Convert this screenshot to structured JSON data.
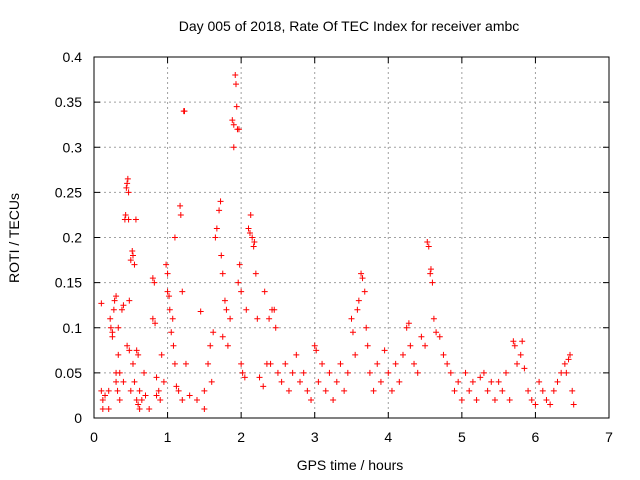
{
  "chart_data": {
    "type": "scatter",
    "title": "Day 005 of 2018, Rate Of TEC Index for receiver ambc",
    "xlabel": "GPS time / hours",
    "ylabel": "ROTI / TECUs",
    "xlim": [
      0,
      7
    ],
    "ylim": [
      0,
      0.4
    ],
    "xticks": [
      0,
      1,
      2,
      3,
      4,
      5,
      6,
      7
    ],
    "xtick_labels": [
      "0",
      "1",
      "2",
      "3",
      "4",
      "5",
      "6",
      "7"
    ],
    "yticks": [
      0,
      0.05,
      0.1,
      0.15,
      0.2,
      0.25,
      0.3,
      0.35,
      0.4
    ],
    "ytick_labels": [
      "0",
      "0.05",
      "0.1",
      "0.15",
      "0.2",
      "0.25",
      "0.3",
      "0.35",
      "0.4"
    ],
    "grid": true,
    "marker": "plus",
    "color": "#ff0000",
    "series": [
      {
        "name": "ROTI",
        "points": [
          [
            0.1,
            0.127
          ],
          [
            0.1,
            0.03
          ],
          [
            0.12,
            0.02
          ],
          [
            0.12,
            0.01
          ],
          [
            0.15,
            0.025
          ],
          [
            0.2,
            0.01
          ],
          [
            0.2,
            0.03
          ],
          [
            0.22,
            0.11
          ],
          [
            0.23,
            0.1
          ],
          [
            0.25,
            0.095
          ],
          [
            0.25,
            0.09
          ],
          [
            0.27,
            0.12
          ],
          [
            0.28,
            0.13
          ],
          [
            0.3,
            0.135
          ],
          [
            0.3,
            0.05
          ],
          [
            0.3,
            0.04
          ],
          [
            0.32,
            0.03
          ],
          [
            0.33,
            0.1
          ],
          [
            0.33,
            0.07
          ],
          [
            0.35,
            0.05
          ],
          [
            0.35,
            0.02
          ],
          [
            0.38,
            0.12
          ],
          [
            0.4,
            0.125
          ],
          [
            0.4,
            0.04
          ],
          [
            0.42,
            0.22
          ],
          [
            0.43,
            0.225
          ],
          [
            0.44,
            0.255
          ],
          [
            0.45,
            0.26
          ],
          [
            0.45,
            0.08
          ],
          [
            0.46,
            0.265
          ],
          [
            0.47,
            0.25
          ],
          [
            0.47,
            0.22
          ],
          [
            0.48,
            0.13
          ],
          [
            0.48,
            0.075
          ],
          [
            0.5,
            0.175
          ],
          [
            0.5,
            0.03
          ],
          [
            0.52,
            0.185
          ],
          [
            0.53,
            0.18
          ],
          [
            0.53,
            0.06
          ],
          [
            0.55,
            0.17
          ],
          [
            0.55,
            0.04
          ],
          [
            0.57,
            0.22
          ],
          [
            0.58,
            0.075
          ],
          [
            0.58,
            0.02
          ],
          [
            0.6,
            0.07
          ],
          [
            0.6,
            0.015
          ],
          [
            0.62,
            0.03
          ],
          [
            0.62,
            0.01
          ],
          [
            0.65,
            0.02
          ],
          [
            0.68,
            0.05
          ],
          [
            0.7,
            0.025
          ],
          [
            0.75,
            0.01
          ],
          [
            0.8,
            0.155
          ],
          [
            0.8,
            0.11
          ],
          [
            0.82,
            0.15
          ],
          [
            0.83,
            0.105
          ],
          [
            0.85,
            0.045
          ],
          [
            0.85,
            0.025
          ],
          [
            0.88,
            0.03
          ],
          [
            0.9,
            0.02
          ],
          [
            0.92,
            0.07
          ],
          [
            0.95,
            0.04
          ],
          [
            0.98,
            0.17
          ],
          [
            1.0,
            0.16
          ],
          [
            1.0,
            0.14
          ],
          [
            1.02,
            0.135
          ],
          [
            1.03,
            0.12
          ],
          [
            1.05,
            0.095
          ],
          [
            1.07,
            0.11
          ],
          [
            1.08,
            0.08
          ],
          [
            1.1,
            0.2
          ],
          [
            1.1,
            0.06
          ],
          [
            1.12,
            0.035
          ],
          [
            1.15,
            0.03
          ],
          [
            1.17,
            0.235
          ],
          [
            1.18,
            0.225
          ],
          [
            1.2,
            0.14
          ],
          [
            1.2,
            0.02
          ],
          [
            1.22,
            0.34
          ],
          [
            1.23,
            0.34
          ],
          [
            1.25,
            0.06
          ],
          [
            1.3,
            0.025
          ],
          [
            1.4,
            0.02
          ],
          [
            1.45,
            0.118
          ],
          [
            1.5,
            0.03
          ],
          [
            1.5,
            0.01
          ],
          [
            1.55,
            0.06
          ],
          [
            1.58,
            0.08
          ],
          [
            1.6,
            0.04
          ],
          [
            1.62,
            0.095
          ],
          [
            1.65,
            0.2
          ],
          [
            1.67,
            0.21
          ],
          [
            1.7,
            0.23
          ],
          [
            1.72,
            0.24
          ],
          [
            1.73,
            0.18
          ],
          [
            1.75,
            0.16
          ],
          [
            1.75,
            0.09
          ],
          [
            1.78,
            0.13
          ],
          [
            1.8,
            0.12
          ],
          [
            1.82,
            0.08
          ],
          [
            1.85,
            0.11
          ],
          [
            1.88,
            0.33
          ],
          [
            1.9,
            0.325
          ],
          [
            1.9,
            0.3
          ],
          [
            1.92,
            0.38
          ],
          [
            1.93,
            0.37
          ],
          [
            1.94,
            0.345
          ],
          [
            1.95,
            0.32
          ],
          [
            1.96,
            0.15
          ],
          [
            1.97,
            0.32
          ],
          [
            1.98,
            0.17
          ],
          [
            2.0,
            0.14
          ],
          [
            2.0,
            0.06
          ],
          [
            2.02,
            0.05
          ],
          [
            2.05,
            0.045
          ],
          [
            2.07,
            0.12
          ],
          [
            2.1,
            0.21
          ],
          [
            2.12,
            0.205
          ],
          [
            2.13,
            0.225
          ],
          [
            2.15,
            0.2
          ],
          [
            2.17,
            0.19
          ],
          [
            2.18,
            0.195
          ],
          [
            2.2,
            0.16
          ],
          [
            2.22,
            0.11
          ],
          [
            2.25,
            0.045
          ],
          [
            2.3,
            0.035
          ],
          [
            2.32,
            0.14
          ],
          [
            2.35,
            0.06
          ],
          [
            2.38,
            0.11
          ],
          [
            2.4,
            0.06
          ],
          [
            2.42,
            0.12
          ],
          [
            2.45,
            0.12
          ],
          [
            2.47,
            0.1
          ],
          [
            2.5,
            0.05
          ],
          [
            2.55,
            0.04
          ],
          [
            2.6,
            0.06
          ],
          [
            2.65,
            0.03
          ],
          [
            2.7,
            0.05
          ],
          [
            2.75,
            0.07
          ],
          [
            2.8,
            0.04
          ],
          [
            2.85,
            0.05
          ],
          [
            2.9,
            0.03
          ],
          [
            2.95,
            0.02
          ],
          [
            3.0,
            0.08
          ],
          [
            3.02,
            0.075
          ],
          [
            3.05,
            0.04
          ],
          [
            3.1,
            0.06
          ],
          [
            3.15,
            0.03
          ],
          [
            3.2,
            0.05
          ],
          [
            3.25,
            0.02
          ],
          [
            3.3,
            0.04
          ],
          [
            3.35,
            0.06
          ],
          [
            3.4,
            0.03
          ],
          [
            3.45,
            0.05
          ],
          [
            3.5,
            0.11
          ],
          [
            3.52,
            0.095
          ],
          [
            3.55,
            0.07
          ],
          [
            3.58,
            0.12
          ],
          [
            3.6,
            0.13
          ],
          [
            3.63,
            0.16
          ],
          [
            3.65,
            0.155
          ],
          [
            3.68,
            0.14
          ],
          [
            3.7,
            0.1
          ],
          [
            3.72,
            0.08
          ],
          [
            3.75,
            0.05
          ],
          [
            3.8,
            0.03
          ],
          [
            3.85,
            0.06
          ],
          [
            3.9,
            0.04
          ],
          [
            3.95,
            0.075
          ],
          [
            4.0,
            0.05
          ],
          [
            4.05,
            0.03
          ],
          [
            4.1,
            0.06
          ],
          [
            4.15,
            0.04
          ],
          [
            4.2,
            0.07
          ],
          [
            4.25,
            0.1
          ],
          [
            4.28,
            0.105
          ],
          [
            4.3,
            0.08
          ],
          [
            4.35,
            0.06
          ],
          [
            4.4,
            0.05
          ],
          [
            4.45,
            0.09
          ],
          [
            4.5,
            0.08
          ],
          [
            4.53,
            0.195
          ],
          [
            4.55,
            0.19
          ],
          [
            4.57,
            0.16
          ],
          [
            4.58,
            0.165
          ],
          [
            4.6,
            0.15
          ],
          [
            4.62,
            0.11
          ],
          [
            4.65,
            0.095
          ],
          [
            4.7,
            0.09
          ],
          [
            4.75,
            0.07
          ],
          [
            4.8,
            0.06
          ],
          [
            4.85,
            0.05
          ],
          [
            4.9,
            0.03
          ],
          [
            4.95,
            0.04
          ],
          [
            5.0,
            0.02
          ],
          [
            5.05,
            0.05
          ],
          [
            5.1,
            0.03
          ],
          [
            5.15,
            0.04
          ],
          [
            5.2,
            0.02
          ],
          [
            5.25,
            0.045
          ],
          [
            5.3,
            0.05
          ],
          [
            5.35,
            0.03
          ],
          [
            5.4,
            0.04
          ],
          [
            5.45,
            0.02
          ],
          [
            5.5,
            0.04
          ],
          [
            5.55,
            0.03
          ],
          [
            5.6,
            0.05
          ],
          [
            5.65,
            0.02
          ],
          [
            5.7,
            0.085
          ],
          [
            5.72,
            0.08
          ],
          [
            5.75,
            0.06
          ],
          [
            5.8,
            0.07
          ],
          [
            5.82,
            0.085
          ],
          [
            5.85,
            0.055
          ],
          [
            5.9,
            0.03
          ],
          [
            5.95,
            0.02
          ],
          [
            6.0,
            0.015
          ],
          [
            6.05,
            0.04
          ],
          [
            6.1,
            0.03
          ],
          [
            6.15,
            0.02
          ],
          [
            6.2,
            0.015
          ],
          [
            6.25,
            0.03
          ],
          [
            6.3,
            0.04
          ],
          [
            6.35,
            0.05
          ],
          [
            6.4,
            0.06
          ],
          [
            6.42,
            0.05
          ],
          [
            6.45,
            0.065
          ],
          [
            6.47,
            0.07
          ],
          [
            6.5,
            0.03
          ],
          [
            6.52,
            0.015
          ]
        ]
      }
    ]
  }
}
